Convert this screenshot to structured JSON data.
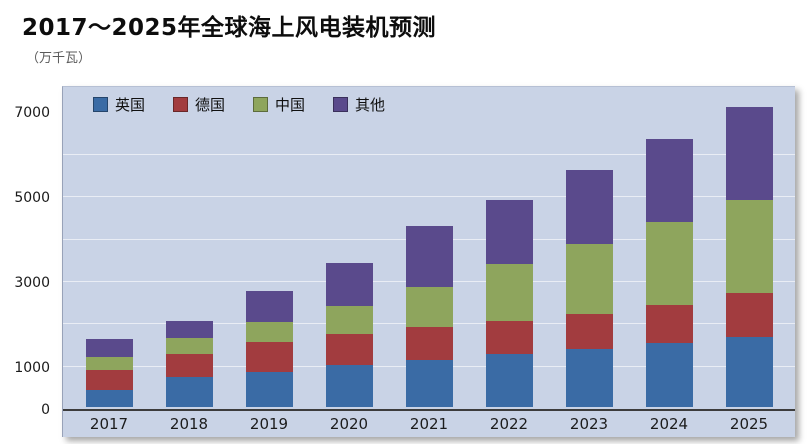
{
  "title": "2017～2025年全球海上风电装机预测",
  "unit_label": "（万千瓦）",
  "plot_bg": "#c9d3e6",
  "chart_data": {
    "type": "bar",
    "subtype": "stacked",
    "title": "2017～2025年全球海上风电装机预测",
    "ylabel": "万千瓦",
    "xlabel": "",
    "categories": [
      "2017",
      "2018",
      "2019",
      "2020",
      "2021",
      "2022",
      "2023",
      "2024",
      "2025"
    ],
    "series": [
      {
        "name": "英国",
        "color": "#3a6ba5",
        "values": [
          400,
          700,
          830,
          1000,
          1120,
          1250,
          1380,
          1500,
          1650
        ]
      },
      {
        "name": "德国",
        "color": "#a23c3f",
        "values": [
          480,
          550,
          700,
          720,
          780,
          780,
          820,
          900,
          1050
        ]
      },
      {
        "name": "中国",
        "color": "#8ea55d",
        "values": [
          300,
          380,
          480,
          670,
          950,
          1350,
          1650,
          1950,
          2200
        ]
      },
      {
        "name": "其他",
        "color": "#5a4a8c",
        "values": [
          420,
          400,
          730,
          1010,
          1450,
          1520,
          1750,
          1950,
          2200
        ]
      }
    ],
    "totals": [
      1600,
      2030,
      2740,
      3400,
      4300,
      4900,
      5600,
      6300,
      7100
    ],
    "ylim": [
      0,
      7600
    ],
    "yticks": [
      0,
      1000,
      3000,
      5000,
      7000
    ],
    "gridline_step": 1000,
    "grid": true,
    "legend_position": "top-left-inside"
  }
}
